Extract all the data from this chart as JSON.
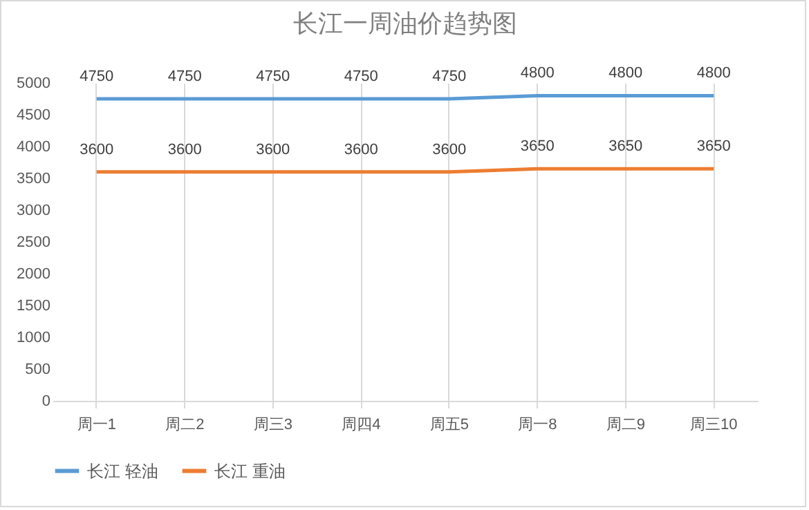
{
  "chart_data": {
    "type": "line",
    "title": "长江一周油价趋势图",
    "categories": [
      "周一1",
      "周二2",
      "周三3",
      "周四4",
      "周五5",
      "周一8",
      "周二9",
      "周三10"
    ],
    "series": [
      {
        "name": "长江 轻油",
        "color": "#5b9bd5",
        "values": [
          4750,
          4750,
          4750,
          4750,
          4750,
          4800,
          4800,
          4800
        ]
      },
      {
        "name": "长江 重油",
        "color": "#ed7d31",
        "values": [
          3600,
          3600,
          3600,
          3600,
          3600,
          3650,
          3650,
          3650
        ]
      }
    ],
    "ylim": [
      0,
      5000
    ],
    "yticks": [
      0,
      500,
      1000,
      1500,
      2000,
      2500,
      3000,
      3500,
      4000,
      4500,
      5000
    ],
    "grid": "x",
    "legend": "bottom",
    "data_labels": true,
    "marker": "none",
    "line_style": "solid"
  }
}
